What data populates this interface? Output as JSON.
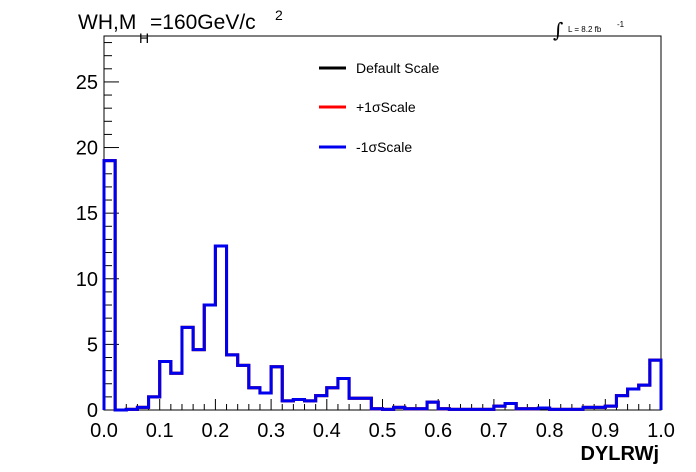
{
  "chart_data": {
    "type": "line",
    "title": {
      "prefix": "WH,M",
      "subscript": "H",
      "suffix": "=160GeV/c",
      "superscript": "2"
    },
    "luminosity": {
      "integral_symbol": "∫",
      "text": "L = 8.2 fb",
      "superscript": "-1"
    },
    "xlabel": "DYLRWj",
    "ylabel": "",
    "xlim": [
      0,
      1
    ],
    "ylim": [
      0,
      28.5
    ],
    "x_ticks": [
      "0.0",
      "0.1",
      "0.2",
      "0.3",
      "0.4",
      "0.5",
      "0.6",
      "0.7",
      "0.8",
      "0.9",
      "1.0"
    ],
    "y_ticks": [
      "0",
      "5",
      "10",
      "15",
      "20",
      "25"
    ],
    "y_tick_values": [
      0,
      5,
      10,
      15,
      20,
      25
    ],
    "legend_position": "top-center",
    "bin_edges": [
      0.0,
      0.02,
      0.04,
      0.06,
      0.08,
      0.1,
      0.12,
      0.14,
      0.16,
      0.18,
      0.2,
      0.22,
      0.24,
      0.26,
      0.28,
      0.3,
      0.32,
      0.34,
      0.36,
      0.38,
      0.4,
      0.42,
      0.44,
      0.46,
      0.48,
      0.5,
      0.52,
      0.54,
      0.56,
      0.58,
      0.6,
      0.62,
      0.64,
      0.66,
      0.68,
      0.7,
      0.72,
      0.74,
      0.76,
      0.78,
      0.8,
      0.82,
      0.84,
      0.86,
      0.88,
      0.9,
      0.92,
      0.94,
      0.96,
      0.98,
      1.0
    ],
    "series": [
      {
        "name": "Default Scale",
        "color": "#000000",
        "values": [
          19.0,
          0.0,
          0.05,
          0.2,
          1.0,
          3.7,
          2.8,
          6.3,
          4.6,
          8.0,
          12.5,
          4.2,
          3.4,
          1.7,
          1.3,
          3.3,
          0.7,
          0.8,
          0.7,
          1.1,
          1.7,
          2.4,
          0.9,
          0.9,
          0.1,
          0.05,
          0.2,
          0.1,
          0.1,
          0.6,
          0.1,
          0.05,
          0.05,
          0.05,
          0.05,
          0.3,
          0.5,
          0.1,
          0.1,
          0.15,
          0.05,
          0.05,
          0.05,
          0.2,
          0.2,
          0.3,
          1.1,
          1.6,
          1.9,
          3.8
        ]
      },
      {
        "name": "+1σScale",
        "color": "#ff0000",
        "values": [
          19.0,
          0.0,
          0.05,
          0.2,
          1.0,
          3.7,
          2.8,
          6.3,
          4.6,
          8.0,
          12.5,
          4.2,
          3.4,
          1.7,
          1.3,
          3.3,
          0.7,
          0.8,
          0.7,
          1.1,
          1.7,
          2.4,
          0.9,
          0.9,
          0.1,
          0.05,
          0.2,
          0.1,
          0.1,
          0.6,
          0.1,
          0.05,
          0.05,
          0.05,
          0.05,
          0.3,
          0.5,
          0.1,
          0.1,
          0.15,
          0.05,
          0.05,
          0.05,
          0.2,
          0.2,
          0.3,
          1.1,
          1.6,
          1.9,
          3.8
        ]
      },
      {
        "name": "-1σScale",
        "color": "#0000ee",
        "values": [
          19.0,
          0.0,
          0.05,
          0.2,
          1.0,
          3.7,
          2.8,
          6.3,
          4.6,
          8.0,
          12.5,
          4.2,
          3.4,
          1.7,
          1.3,
          3.3,
          0.7,
          0.8,
          0.7,
          1.1,
          1.7,
          2.4,
          0.9,
          0.9,
          0.1,
          0.05,
          0.2,
          0.1,
          0.1,
          0.6,
          0.1,
          0.05,
          0.05,
          0.05,
          0.05,
          0.3,
          0.5,
          0.1,
          0.1,
          0.15,
          0.05,
          0.05,
          0.05,
          0.2,
          0.2,
          0.3,
          1.1,
          1.6,
          1.9,
          3.8
        ]
      }
    ]
  }
}
